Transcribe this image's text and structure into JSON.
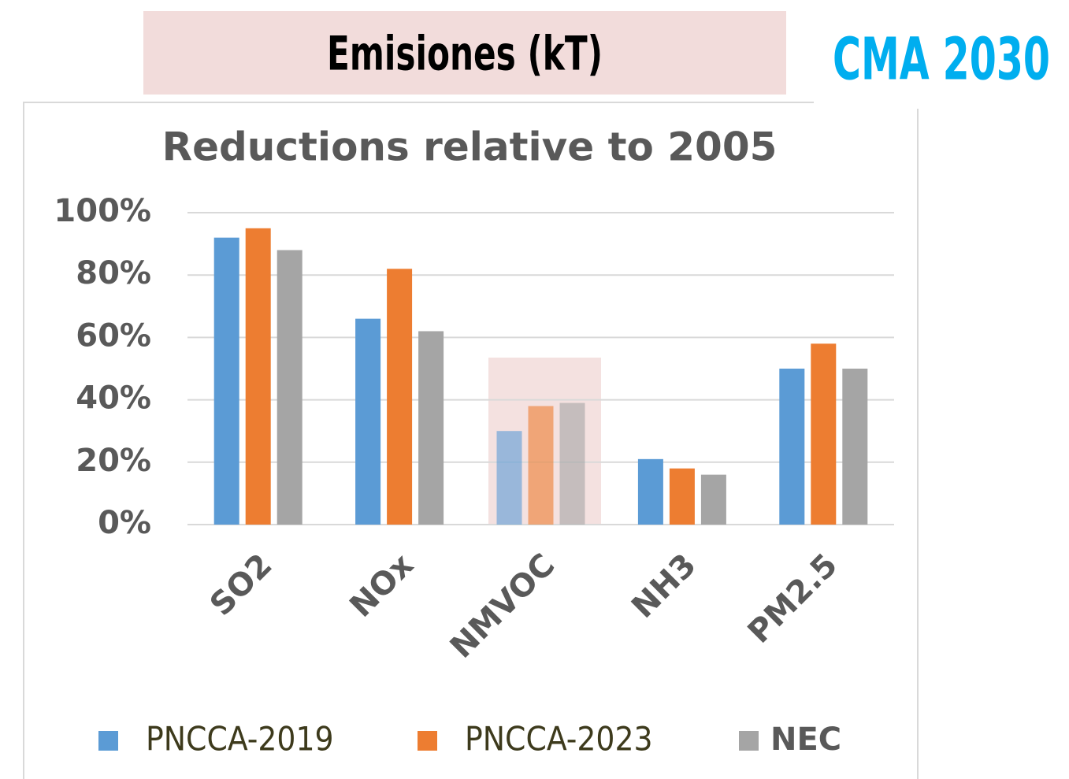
{
  "header": {
    "title": "Emisiones (kT)",
    "badge": "CMA 2030"
  },
  "chart_data": {
    "type": "bar",
    "title": "Reductions relative to 2005",
    "categories": [
      "SO2",
      "NOx",
      "NMVOC",
      "NH3",
      "PM2.5"
    ],
    "series": [
      {
        "name": "PNCCA-2019",
        "color": "#5b9bd5",
        "values": [
          92,
          66,
          30,
          21,
          50
        ]
      },
      {
        "name": "PNCCA-2023",
        "color": "#ed7d31",
        "values": [
          95,
          82,
          38,
          18,
          58
        ]
      },
      {
        "name": "NEC",
        "color": "#a5a5a5",
        "values": [
          88,
          62,
          39,
          16,
          50
        ]
      }
    ],
    "ylim": [
      0,
      100
    ],
    "yticks": [
      {
        "value": 0,
        "label": "0%"
      },
      {
        "value": 20,
        "label": "20%"
      },
      {
        "value": 40,
        "label": "40%"
      },
      {
        "value": 60,
        "label": "60%"
      },
      {
        "value": 80,
        "label": "80%"
      },
      {
        "value": 100,
        "label": "100%"
      }
    ],
    "grid": true
  }
}
